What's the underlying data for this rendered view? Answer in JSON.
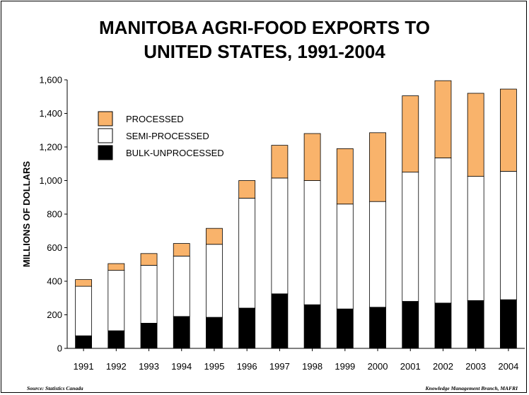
{
  "title_line1": "MANITOBA AGRI-FOOD EXPORTS TO",
  "title_line2": "UNITED STATES, 1991-2004",
  "footer_source": "Source: Statistics Canada",
  "footer_credit": "Knowledge Management Branch, MAFRI",
  "chart_data": {
    "type": "bar",
    "stacked": true,
    "title": "MANITOBA AGRI-FOOD EXPORTS TO UNITED STATES, 1991-2004",
    "xlabel": "",
    "ylabel": "MILLIONS OF DOLLARS",
    "ylim": [
      0,
      1600
    ],
    "yticks": [
      0,
      200,
      400,
      600,
      800,
      1000,
      1200,
      1400,
      1600
    ],
    "ytick_labels": [
      "0",
      "200",
      "400",
      "600",
      "800",
      "1,000",
      "1,200",
      "1,400",
      "1,600"
    ],
    "categories": [
      "1991",
      "1992",
      "1993",
      "1994",
      "1995",
      "1996",
      "1997",
      "1998",
      "1999",
      "2000",
      "2001",
      "2002",
      "2003",
      "2004"
    ],
    "series": [
      {
        "name": "BULK-UNPROCESSED",
        "color": "#000000",
        "values": [
          75,
          105,
          150,
          190,
          185,
          240,
          325,
          260,
          235,
          245,
          280,
          270,
          285,
          290
        ]
      },
      {
        "name": "SEMI-PROCESSED",
        "color": "#ffffff",
        "values": [
          295,
          360,
          345,
          360,
          435,
          655,
          690,
          740,
          625,
          630,
          770,
          865,
          740,
          765
        ]
      },
      {
        "name": "PROCESSED",
        "color": "#f9b36b",
        "values": [
          40,
          40,
          70,
          75,
          95,
          105,
          195,
          280,
          330,
          410,
          455,
          460,
          495,
          490
        ]
      }
    ],
    "legend_order": [
      "PROCESSED",
      "SEMI-PROCESSED",
      "BULK-UNPROCESSED"
    ],
    "legend_position": "top-left",
    "grid": false
  }
}
